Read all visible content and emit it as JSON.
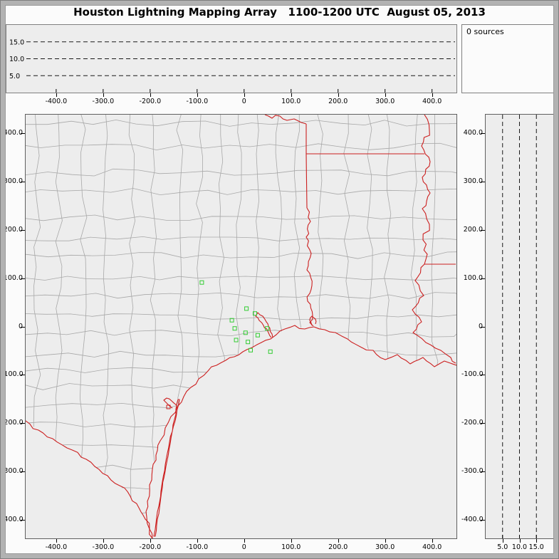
{
  "window": {
    "title": "Houston Lightning Mapping Array   1100-1200 UTC  August 05, 2013"
  },
  "status": {
    "sources_label": "0 sources"
  },
  "colors": {
    "plot_bg": "#ededed",
    "county_lines": "#a8a8a8",
    "state_coast": "#cc1f1f",
    "station": "#33cc33",
    "gridline": "#1a1a1a",
    "frame": "#b2b2b2"
  },
  "chart_data": [
    {
      "id": "alt-vs-ew",
      "type": "scatter",
      "panel": "altitude (km) vs east-west distance (km)",
      "xlim": [
        -465,
        452
      ],
      "ylim": [
        0,
        20
      ],
      "x_ticks": [
        -400,
        -300,
        -200,
        -100,
        0,
        100,
        200,
        300,
        400
      ],
      "x_tick_labels": [
        "-400.0",
        "-300.0",
        "-200.0",
        "-100.0",
        "0",
        "100.0",
        "200.0",
        "300.0",
        "400.0"
      ],
      "y_gridlines": [
        5,
        10,
        15
      ],
      "y_gridline_labels": [
        "5.0",
        "10.0",
        "15.0"
      ],
      "grid_style": "dashed",
      "points": []
    },
    {
      "id": "plan-view",
      "type": "scatter",
      "panel": "plan view map, distances in km from network center",
      "xlim": [
        -465,
        452
      ],
      "ylim": [
        -438,
        438
      ],
      "x_ticks": [
        -400,
        -300,
        -200,
        -100,
        0,
        100,
        200,
        300,
        400
      ],
      "x_tick_labels": [
        "-400.0",
        "-300.0",
        "-200.0",
        "-100.0",
        "0",
        "100.0",
        "200.0",
        "300.0",
        "400.0"
      ],
      "y_ticks": [
        400,
        300,
        200,
        100,
        0,
        -100,
        -200,
        -300,
        -400
      ],
      "y_tick_labels": [
        "400.0",
        "300.0",
        "200.0",
        "100.0",
        "0",
        "-100.0",
        "-200.0",
        "-300.0",
        "-400.0"
      ],
      "stations_km": [
        [
          -90,
          91
        ],
        [
          5,
          37
        ],
        [
          23,
          27
        ],
        [
          -26,
          13
        ],
        [
          -20,
          -4
        ],
        [
          3,
          -13
        ],
        [
          -17,
          -28
        ],
        [
          8,
          -32
        ],
        [
          29,
          -18
        ],
        [
          49,
          -4
        ],
        [
          14,
          -49
        ],
        [
          56,
          -52
        ]
      ],
      "red_marker_km": [
        -159,
        -168
      ],
      "sources": []
    },
    {
      "id": "alt-vs-ns",
      "type": "scatter",
      "panel": "altitude (km) vs north-south distance (km)",
      "xlim": [
        0,
        20
      ],
      "ylim": [
        -438,
        438
      ],
      "x_gridlines": [
        5,
        10,
        15
      ],
      "x_tick_labels": [
        "5.0",
        "10.0",
        "15.0"
      ],
      "y_ticks": [
        400,
        300,
        200,
        100,
        0,
        -100,
        -200,
        -300,
        -400
      ],
      "y_tick_labels": [
        "400.0",
        "300.0",
        "200.0",
        "100.0",
        "0",
        "-100.0",
        "-200.0",
        "-300.0",
        "-400.0"
      ],
      "grid_style": "dashed",
      "points": []
    }
  ]
}
